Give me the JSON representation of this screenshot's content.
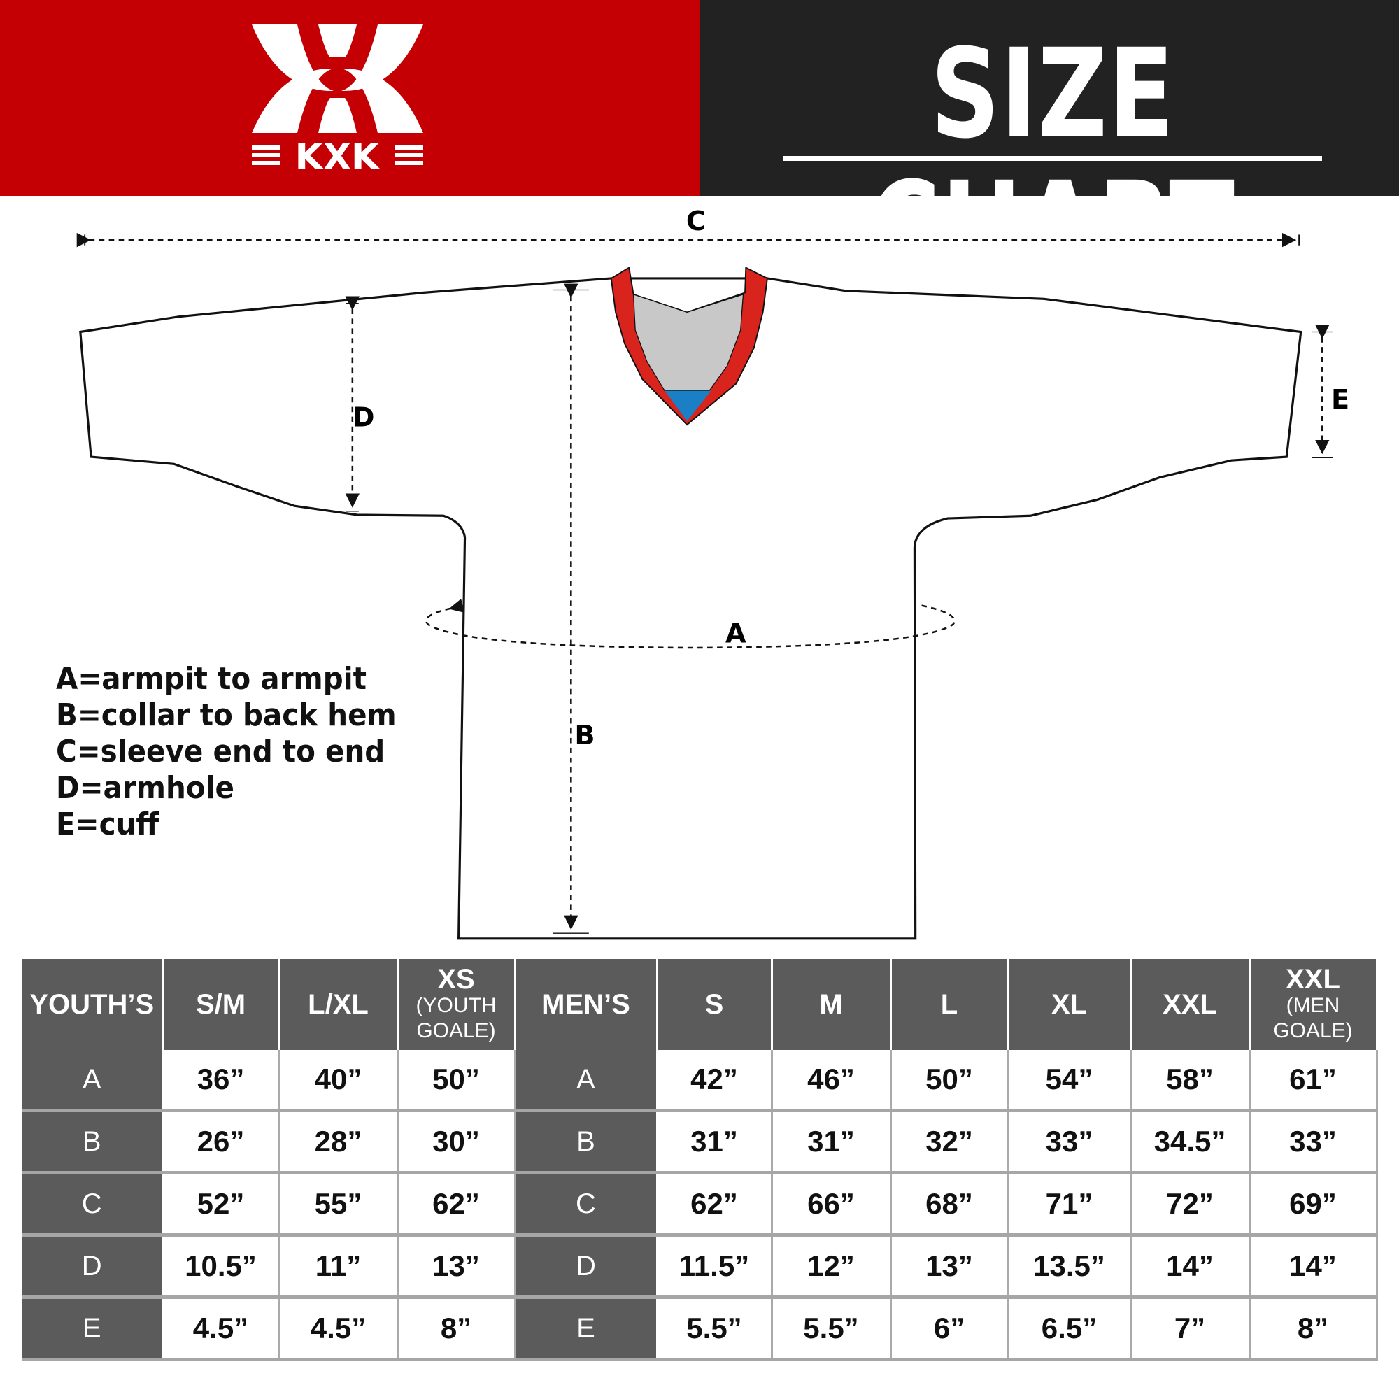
{
  "header": {
    "brand": "KXK",
    "title": "SIZE CHART",
    "colors": {
      "brand_red": "#c50005",
      "dark": "#222222",
      "table_header": "#5b5b5b",
      "collar_red": "#d9231d",
      "collar_gray": "#c8c8c8",
      "collar_blue": "#1a7fc4"
    }
  },
  "diagram": {
    "labels": {
      "A": "A",
      "B": "B",
      "C": "C",
      "D": "D",
      "E": "E"
    }
  },
  "legend": [
    "A=armpit to armpit",
    "B=collar to back hem",
    "C=sleeve end to end",
    "D=armhole",
    "E=cuff"
  ],
  "table": {
    "youth_header": "YOUTH’S",
    "youth_sizes": [
      {
        "main": "S/M",
        "sub": ""
      },
      {
        "main": "L/XL",
        "sub": ""
      },
      {
        "main": "XS",
        "sub": "(YOUTH GOALE)"
      }
    ],
    "men_header": "MEN’S",
    "men_sizes": [
      {
        "main": "S",
        "sub": ""
      },
      {
        "main": "M",
        "sub": ""
      },
      {
        "main": "L",
        "sub": ""
      },
      {
        "main": "XL",
        "sub": ""
      },
      {
        "main": "XXL",
        "sub": ""
      },
      {
        "main": "XXL",
        "sub": "(MEN GOALE)"
      }
    ],
    "rows": [
      {
        "label": "A",
        "youth": [
          "36”",
          "40”",
          "50”"
        ],
        "men": [
          "42”",
          "46”",
          "50”",
          "54”",
          "58”",
          "61”"
        ]
      },
      {
        "label": "B",
        "youth": [
          "26”",
          "28”",
          "30”"
        ],
        "men": [
          "31”",
          "31”",
          "32”",
          "33”",
          "34.5”",
          "33”"
        ]
      },
      {
        "label": "C",
        "youth": [
          "52”",
          "55”",
          "62”"
        ],
        "men": [
          "62”",
          "66”",
          "68”",
          "71”",
          "72”",
          "69”"
        ]
      },
      {
        "label": "D",
        "youth": [
          "10.5”",
          "11”",
          "13”"
        ],
        "men": [
          "11.5”",
          "12”",
          "13”",
          "13.5”",
          "14”",
          "14”"
        ]
      },
      {
        "label": "E",
        "youth": [
          "4.5”",
          "4.5”",
          "8”"
        ],
        "men": [
          "5.5”",
          "5.5”",
          "6”",
          "6.5”",
          "7”",
          "8”"
        ]
      }
    ]
  }
}
